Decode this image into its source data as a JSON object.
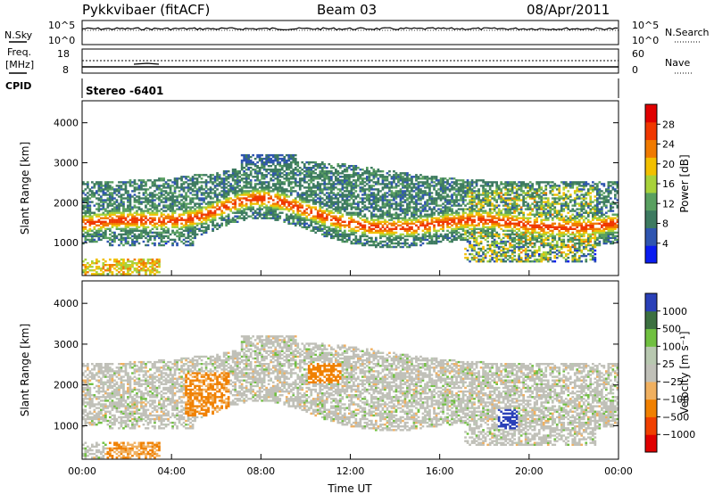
{
  "header": {
    "title": "Pykkvibaer (fitACF)",
    "beam": "Beam 03",
    "date": "08/Apr/2011"
  },
  "aux_panels": {
    "nsky_label": "N.Sky",
    "nsearch_label": "N.Search",
    "freq_label_1": "Freq.",
    "freq_label_2": "[MHz]",
    "nave_label": "Nave",
    "cpid_label": "CPID",
    "cpid_value": "Stereo -6401",
    "nsky_ticks": [
      "10^5",
      "10^0"
    ],
    "nsearch_ticks": [
      "10^5",
      "10^0"
    ],
    "freq_ticks": [
      "18",
      "8"
    ],
    "nave_ticks": [
      "60",
      "0"
    ]
  },
  "colors": {
    "power": [
      "#0a1cf0",
      "#2f55b0",
      "#3d7a60",
      "#59a060",
      "#a8d23a",
      "#f2c000",
      "#f07a00",
      "#f03800",
      "#e00000"
    ],
    "velocity": [
      "#e00000",
      "#f04000",
      "#f08000",
      "#f0b060",
      "#c0c0b8",
      "#b8c8b0",
      "#70c040",
      "#3c7040",
      "#2a40b8"
    ]
  },
  "chart_data": [
    {
      "type": "heatmap",
      "name": "power-panel",
      "ylabel": "Slant Range [km]",
      "ylim": [
        180,
        4550
      ],
      "yticks": [
        "1000",
        "2000",
        "3000",
        "4000"
      ],
      "xlim": [
        0,
        24
      ],
      "colorbar": {
        "label": "Power [dB]",
        "ticks": [
          "28",
          "24",
          "20",
          "16",
          "12",
          "8",
          "4"
        ],
        "range": [
          0,
          32
        ]
      }
    },
    {
      "type": "heatmap",
      "name": "velocity-panel",
      "ylabel": "Slant Range [km]",
      "ylim": [
        180,
        4550
      ],
      "yticks": [
        "1000",
        "2000",
        "3000",
        "4000"
      ],
      "xlim": [
        0,
        24
      ],
      "xlabel": "Time UT",
      "xticks": [
        "00:00",
        "04:00",
        "08:00",
        "12:00",
        "16:00",
        "20:00",
        "00:00"
      ],
      "colorbar": {
        "label": "Velocity [m s⁻¹]",
        "ticks": [
          "1000",
          "500",
          "100",
          "25",
          "−25",
          "−100",
          "−500",
          "−1000"
        ]
      }
    }
  ]
}
